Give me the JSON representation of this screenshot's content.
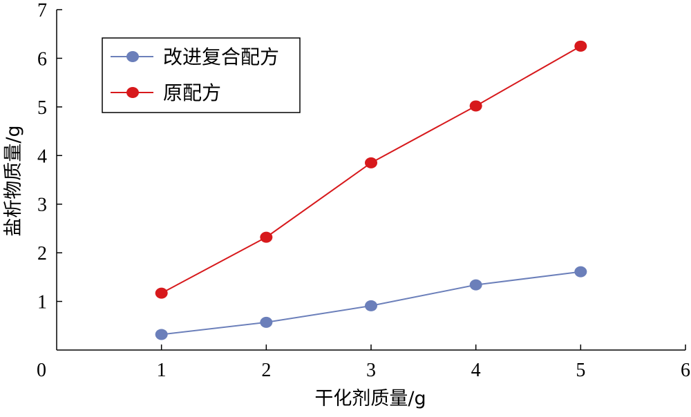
{
  "chart_data": {
    "type": "line",
    "title": "",
    "xlabel": "干化剂质量/g",
    "ylabel": "盐析物质量/g",
    "xlim": [
      0,
      6
    ],
    "ylim": [
      0,
      7
    ],
    "xticks": [
      0,
      1,
      2,
      3,
      4,
      5,
      6
    ],
    "yticks": [
      1,
      2,
      3,
      4,
      5,
      6,
      7
    ],
    "x": [
      1,
      2,
      3,
      4,
      5
    ],
    "series": [
      {
        "name": "改进复合配方",
        "color": "#6b7fba",
        "values": [
          0.32,
          0.57,
          0.91,
          1.34,
          1.61
        ]
      },
      {
        "name": "原配方",
        "color": "#d7191c",
        "values": [
          1.17,
          2.32,
          3.85,
          5.02,
          6.25
        ]
      }
    ],
    "grid": false,
    "legend": "top-left"
  }
}
